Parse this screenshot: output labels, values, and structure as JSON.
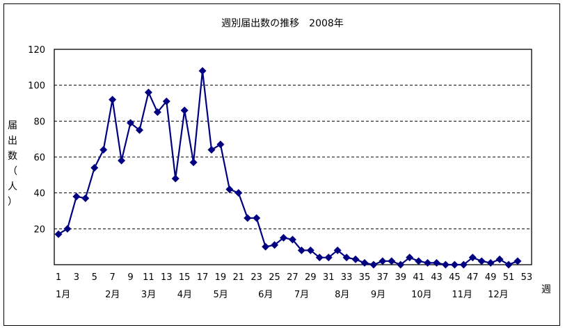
{
  "chart_data": {
    "type": "line",
    "title": "週別届出数の推移　2008年",
    "xlabel": "週",
    "ylabel": "届出数（人）",
    "ylim": [
      0,
      120
    ],
    "yticks": [
      20,
      40,
      60,
      80,
      100,
      120
    ],
    "grid": "horizontal dashed",
    "legend": "none",
    "x_tick_labels": [
      "1",
      "3",
      "5",
      "7",
      "9",
      "11",
      "13",
      "15",
      "17",
      "19",
      "21",
      "23",
      "25",
      "27",
      "29",
      "31",
      "33",
      "35",
      "37",
      "39",
      "41",
      "43",
      "45",
      "47",
      "49",
      "51",
      "53"
    ],
    "month_labels": [
      {
        "label": "1月",
        "week": 1
      },
      {
        "label": "2月",
        "week": 6.5
      },
      {
        "label": "3月",
        "week": 10.5
      },
      {
        "label": "4月",
        "week": 14.5
      },
      {
        "label": "5月",
        "week": 18.5
      },
      {
        "label": "6月",
        "week": 23.5
      },
      {
        "label": "7月",
        "week": 27.5
      },
      {
        "label": "8月",
        "week": 32
      },
      {
        "label": "9月",
        "week": 36
      },
      {
        "label": "10月",
        "week": 40.5
      },
      {
        "label": "11月",
        "week": 45
      },
      {
        "label": "12月",
        "week": 49
      }
    ],
    "x": [
      1,
      2,
      3,
      4,
      5,
      6,
      7,
      8,
      9,
      10,
      11,
      12,
      13,
      14,
      15,
      16,
      17,
      18,
      19,
      20,
      21,
      22,
      23,
      24,
      25,
      26,
      27,
      28,
      29,
      30,
      31,
      32,
      33,
      34,
      35,
      36,
      37,
      38,
      39,
      40,
      41,
      42,
      43,
      44,
      45,
      46,
      47,
      48,
      49,
      50,
      51,
      52
    ],
    "series": [
      {
        "name": "届出数",
        "color": "#000080",
        "marker": "diamond",
        "values": [
          17,
          20,
          38,
          37,
          54,
          64,
          92,
          58,
          79,
          75,
          96,
          85,
          91,
          48,
          86,
          57,
          108,
          64,
          67,
          42,
          40,
          26,
          26,
          10,
          11,
          15,
          14,
          8,
          8,
          4,
          4,
          8,
          4,
          3,
          1,
          0,
          2,
          2,
          0,
          4,
          2,
          1,
          1,
          0,
          0,
          0,
          4,
          2,
          1,
          3,
          0,
          2
        ]
      }
    ]
  }
}
